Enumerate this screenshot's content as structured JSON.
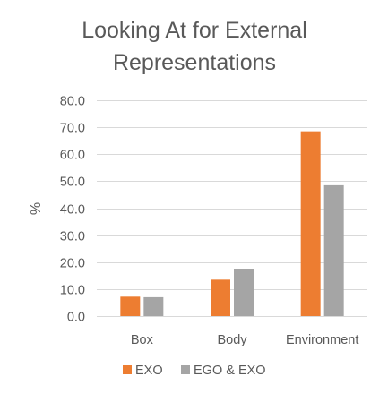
{
  "chart_data": {
    "type": "bar",
    "title_lines": [
      "Looking At for External",
      "Representations"
    ],
    "xlabel": "",
    "ylabel": "%",
    "categories": [
      "Box",
      "Body",
      "Environment"
    ],
    "series": [
      {
        "name": "EXO",
        "color": "#ED7D31",
        "values": [
          7.2,
          13.5,
          68.5
        ]
      },
      {
        "name": "EGO & EXO",
        "color": "#A5A5A5",
        "values": [
          7.0,
          17.5,
          48.5
        ]
      }
    ],
    "ylim": [
      0,
      80
    ],
    "yticks": [
      "0.0",
      "10.0",
      "20.0",
      "30.0",
      "40.0",
      "50.0",
      "60.0",
      "70.0",
      "80.0"
    ],
    "grid": true,
    "legend_position": "bottom"
  }
}
